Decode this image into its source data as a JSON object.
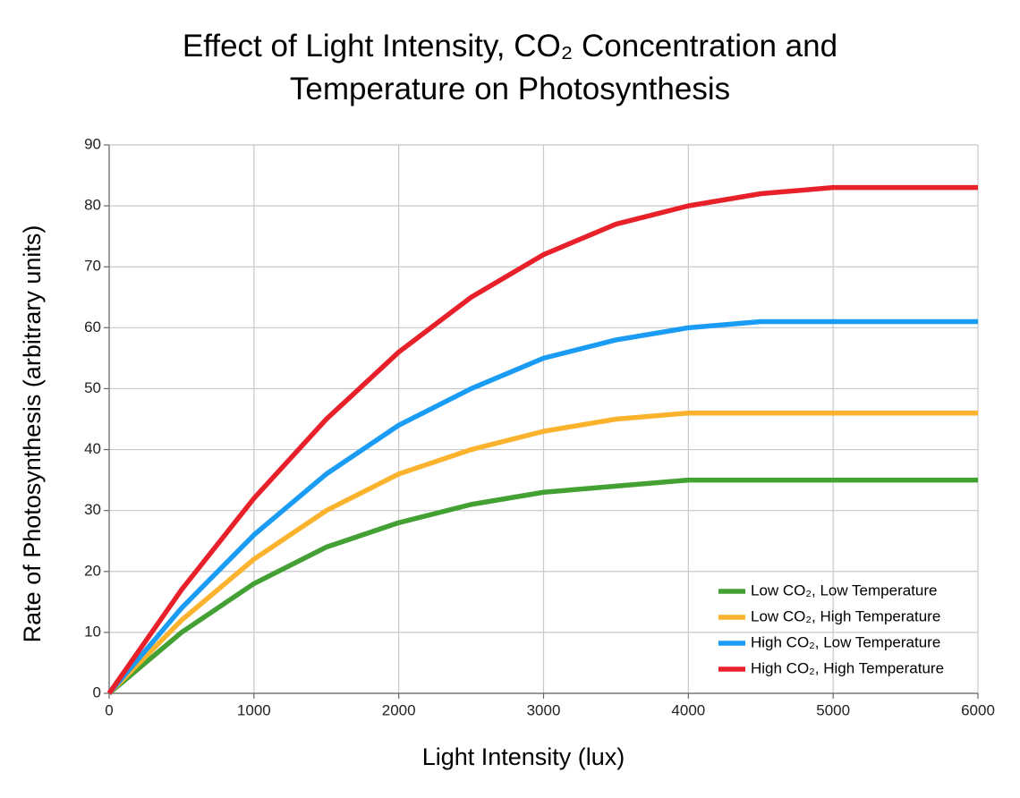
{
  "chart_data": {
    "type": "line",
    "title": "Effect of Light Intensity, CO₂ Concentration and Temperature on Photosynthesis",
    "x_label": "Light Intensity (lux)",
    "y_label": "Rate of Photosynthesis (arbitrary units)",
    "x": [
      0,
      500,
      1000,
      1500,
      2000,
      2500,
      3000,
      3500,
      4000,
      4500,
      5000,
      5500,
      6000
    ],
    "series": [
      {
        "name": "Low CO₂, Low Temperature",
        "color": "#43a033",
        "values": [
          0,
          10,
          18,
          24,
          28,
          31,
          33,
          34,
          35,
          35,
          35,
          35,
          35
        ]
      },
      {
        "name": "Low CO₂, High Temperature",
        "color": "#fbb22c",
        "values": [
          0,
          12,
          22,
          30,
          36,
          40,
          43,
          45,
          46,
          46,
          46,
          46,
          46
        ]
      },
      {
        "name": "High CO₂, Low Temperature",
        "color": "#1a9cf5",
        "values": [
          0,
          14,
          26,
          36,
          44,
          50,
          55,
          58,
          60,
          61,
          61,
          61,
          61
        ]
      },
      {
        "name": "High CO₂, High Temperature",
        "color": "#e8202a",
        "values": [
          0,
          17,
          32,
          45,
          56,
          65,
          72,
          77,
          80,
          82,
          83,
          83,
          83
        ]
      }
    ],
    "xlim": [
      0,
      6000
    ],
    "xticks": [
      0,
      1000,
      2000,
      3000,
      4000,
      5000,
      6000
    ],
    "ylim": [
      0,
      90
    ],
    "yticks": [
      0,
      10,
      20,
      30,
      40,
      50,
      60,
      70,
      80,
      90
    ],
    "grid": true,
    "legend": "lower right"
  }
}
